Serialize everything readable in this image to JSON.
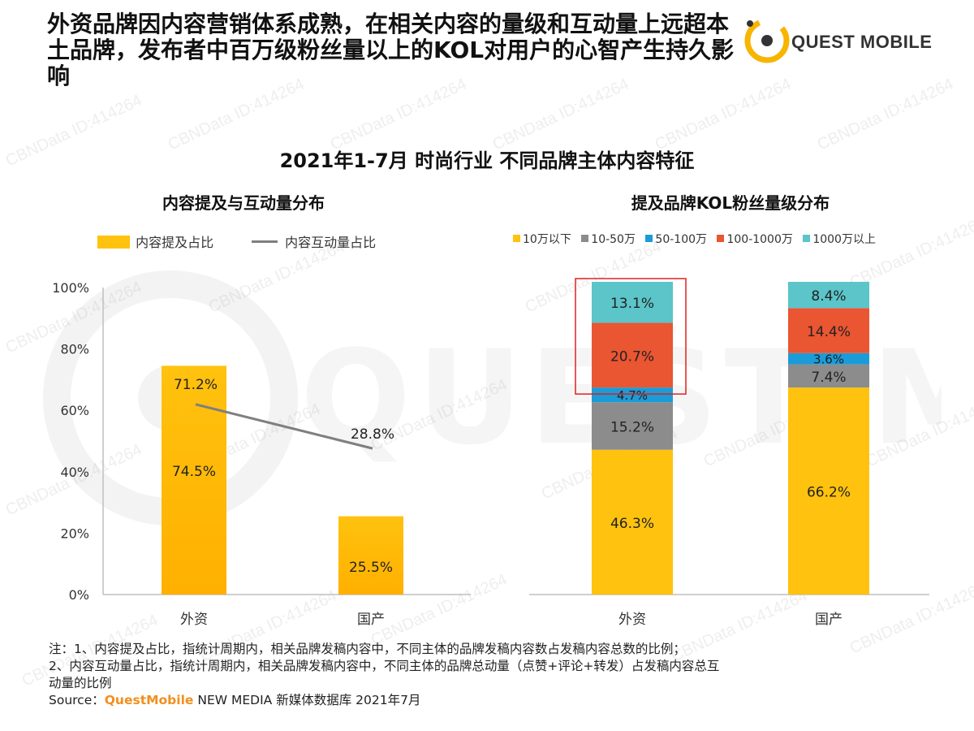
{
  "headline": "外资品牌因内容营销体系成熟，在相关内容的量级和互动量上远超本土品牌，发布者中百万级粉丝量以上的KOL对用户的心智产生持久影响",
  "logo_text": "QUEST MOBILE",
  "watermark_text": "CBNData ID:414264",
  "main_title": "2021年1-7月 时尚行业 不同品牌主体内容特征",
  "colors": {
    "bar_yellow": "#FFC20E",
    "line_gray": "#7F7F7F",
    "seg_yellow": "#FFC20E",
    "seg_gray": "#8C8C8C",
    "seg_blue": "#1B9BD7",
    "seg_red": "#EA5532",
    "seg_teal": "#5BC5C9",
    "highlight": "#E02020"
  },
  "chart_data": [
    {
      "type": "bar",
      "title": "内容提及与互动量分布",
      "categories": [
        "外资",
        "国产"
      ],
      "ylim": [
        0,
        100
      ],
      "y_ticks": [
        "0%",
        "20%",
        "40%",
        "60%",
        "80%",
        "100%"
      ],
      "legend_position": "top-left",
      "series": [
        {
          "name": "内容提及占比",
          "kind": "bar",
          "values": [
            74.5,
            25.5
          ],
          "labels": [
            "74.5%",
            "25.5%"
          ]
        },
        {
          "name": "内容互动量占比",
          "kind": "line",
          "values": [
            71.2,
            28.8
          ],
          "labels": [
            "71.2%",
            "28.8%"
          ]
        }
      ]
    },
    {
      "type": "bar",
      "stacked": true,
      "title": "提及品牌KOL粉丝量级分布",
      "categories": [
        "外资",
        "国产"
      ],
      "ylim": [
        0,
        100
      ],
      "legend_position": "top",
      "series": [
        {
          "name": "10万以下",
          "values": [
            46.3,
            66.2
          ],
          "labels": [
            "46.3%",
            "66.2%"
          ]
        },
        {
          "name": "10-50万",
          "values": [
            15.2,
            7.4
          ],
          "labels": [
            "15.2%",
            "7.4%"
          ]
        },
        {
          "name": "50-100万",
          "values": [
            4.7,
            3.6
          ],
          "labels": [
            "4.7%",
            "3.6%"
          ]
        },
        {
          "name": "100-1000万",
          "values": [
            20.7,
            14.4
          ],
          "labels": [
            "20.7%",
            "14.4%"
          ]
        },
        {
          "name": "1000万以上",
          "values": [
            13.1,
            8.4
          ],
          "labels": [
            "13.1%",
            "8.4%"
          ]
        }
      ]
    }
  ],
  "notes": {
    "line1": "注：1、内容提及占比，指统计周期内，相关品牌发稿内容中，不同主体的品牌发稿内容数占发稿内容总数的比例；",
    "line2": "2、内容互动量占比，指统计周期内，相关品牌发稿内容中，不同主体的品牌总动量（点赞+评论+转发）占发稿内容总互",
    "line3": "动量的比例",
    "source_label": "Source：",
    "source_brand": "QuestMobile",
    "source_rest": " NEW MEDIA 新媒体数据库 2021年7月"
  }
}
